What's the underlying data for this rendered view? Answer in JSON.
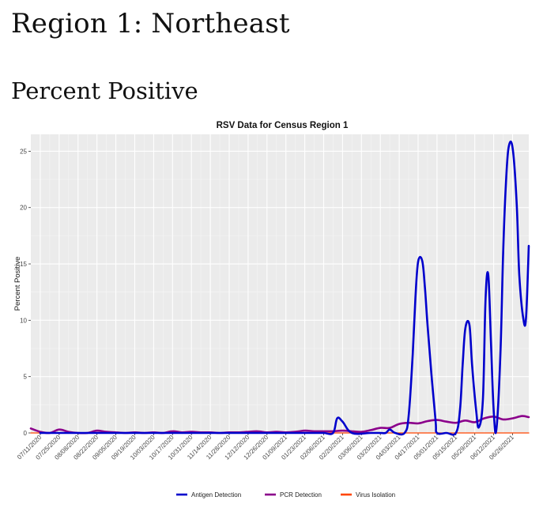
{
  "page": {
    "region_title": "Region 1: Northeast",
    "section_title": "Percent Positive"
  },
  "colors": {
    "panel_bg": "#ebebeb",
    "grid_major": "#ffffff",
    "antigen": "#0000cc",
    "pcr": "#8b008b",
    "virus": "#ff4500"
  },
  "chart_data": {
    "type": "line",
    "title": "RSV Data for Census Region 1",
    "xlabel": "",
    "ylabel": "Percent Positive",
    "ylim": [
      0,
      26.5
    ],
    "yticks": [
      0,
      5,
      10,
      15,
      20,
      25
    ],
    "ytick_labels": [
      "0",
      "5",
      "10",
      "15",
      "20",
      "25"
    ],
    "grid": true,
    "legend_position": "bottom",
    "x": [
      "07/11/2020",
      "07/25/2020",
      "08/08/2020",
      "08/22/2020",
      "09/05/2020",
      "09/19/2020",
      "10/03/2020",
      "10/17/2020",
      "10/31/2020",
      "11/14/2020",
      "11/28/2020",
      "12/12/2020",
      "12/26/2020",
      "01/09/2021",
      "01/23/2021",
      "02/06/2021",
      "02/20/2021",
      "03/06/2021",
      "03/20/2021",
      "04/03/2021",
      "04/17/2021",
      "05/01/2021",
      "05/15/2021",
      "05/29/2021",
      "06/12/2021",
      "06/26/2021"
    ],
    "series": [
      {
        "name": "Antigen Detection",
        "color": "#0000cc",
        "points": [
          [
            "07/11/2020",
            0
          ],
          [
            "07/18/2020",
            0
          ],
          [
            "08/01/2020",
            0
          ],
          [
            "08/15/2020",
            0
          ],
          [
            "08/29/2020",
            0
          ],
          [
            "09/12/2020",
            0
          ],
          [
            "09/26/2020",
            0
          ],
          [
            "10/10/2020",
            0
          ],
          [
            "10/24/2020",
            0
          ],
          [
            "11/07/2020",
            0
          ],
          [
            "11/21/2020",
            0
          ],
          [
            "12/05/2020",
            0
          ],
          [
            "12/19/2020",
            0
          ],
          [
            "01/02/2021",
            0
          ],
          [
            "01/16/2021",
            0
          ],
          [
            "01/30/2021",
            0
          ],
          [
            "02/06/2021",
            0
          ],
          [
            "02/13/2021",
            0
          ],
          [
            "02/16/2021",
            1.3
          ],
          [
            "02/20/2021",
            1.0
          ],
          [
            "02/27/2021",
            0
          ],
          [
            "03/13/2021",
            0
          ],
          [
            "03/20/2021",
            0
          ],
          [
            "03/24/2021",
            0
          ],
          [
            "03/27/2021",
            0.3
          ],
          [
            "03/31/2021",
            0
          ],
          [
            "04/07/2021",
            0
          ],
          [
            "04/10/2021",
            1.5
          ],
          [
            "04/13/2021",
            7.0
          ],
          [
            "04/15/2021",
            12.0
          ],
          [
            "04/17/2021",
            15.2
          ],
          [
            "04/20/2021",
            15.3
          ],
          [
            "04/22/2021",
            13.0
          ],
          [
            "04/24/2021",
            9.5
          ],
          [
            "04/27/2021",
            5.0
          ],
          [
            "04/30/2021",
            1.0
          ],
          [
            "05/01/2021",
            0
          ],
          [
            "05/08/2021",
            0
          ],
          [
            "05/15/2021",
            0
          ],
          [
            "05/18/2021",
            2.0
          ],
          [
            "05/20/2021",
            6.0
          ],
          [
            "05/22/2021",
            9.3
          ],
          [
            "05/25/2021",
            9.6
          ],
          [
            "05/27/2021",
            6.0
          ],
          [
            "05/30/2021",
            2.0
          ],
          [
            "06/01/2021",
            0.5
          ],
          [
            "06/04/2021",
            3.0
          ],
          [
            "06/06/2021",
            12.0
          ],
          [
            "06/08/2021",
            14.0
          ],
          [
            "06/10/2021",
            8.0
          ],
          [
            "06/12/2021",
            2.0
          ],
          [
            "06/14/2021",
            0.3
          ],
          [
            "06/17/2021",
            7.0
          ],
          [
            "06/19/2021",
            16.0
          ],
          [
            "06/21/2021",
            22.0
          ],
          [
            "06/23/2021",
            25.3
          ],
          [
            "06/26/2021",
            25.3
          ],
          [
            "06/29/2021",
            20.5
          ],
          [
            "07/01/2021",
            14.0
          ],
          [
            "07/04/2021",
            10.1
          ],
          [
            "07/06/2021",
            10.3
          ],
          [
            "07/08/2021",
            16.6
          ]
        ]
      },
      {
        "name": "PCR Detection",
        "color": "#8b008b",
        "points": [
          [
            "07/04/2020",
            0.4
          ],
          [
            "07/11/2020",
            0.1
          ],
          [
            "07/18/2020",
            0.0
          ],
          [
            "07/25/2020",
            0.3
          ],
          [
            "08/01/2020",
            0.1
          ],
          [
            "08/08/2020",
            0.0
          ],
          [
            "08/15/2020",
            0.0
          ],
          [
            "08/22/2020",
            0.2
          ],
          [
            "08/29/2020",
            0.1
          ],
          [
            "09/05/2020",
            0.05
          ],
          [
            "09/12/2020",
            0.0
          ],
          [
            "09/19/2020",
            0.05
          ],
          [
            "09/26/2020",
            0.0
          ],
          [
            "10/03/2020",
            0.05
          ],
          [
            "10/10/2020",
            0.0
          ],
          [
            "10/17/2020",
            0.15
          ],
          [
            "10/24/2020",
            0.05
          ],
          [
            "10/31/2020",
            0.1
          ],
          [
            "11/07/2020",
            0.05
          ],
          [
            "11/14/2020",
            0.05
          ],
          [
            "11/21/2020",
            0.0
          ],
          [
            "11/28/2020",
            0.05
          ],
          [
            "12/05/2020",
            0.05
          ],
          [
            "12/12/2020",
            0.1
          ],
          [
            "12/19/2020",
            0.15
          ],
          [
            "12/26/2020",
            0.05
          ],
          [
            "01/02/2021",
            0.1
          ],
          [
            "01/09/2021",
            0.05
          ],
          [
            "01/16/2021",
            0.1
          ],
          [
            "01/23/2021",
            0.2
          ],
          [
            "01/30/2021",
            0.15
          ],
          [
            "02/06/2021",
            0.15
          ],
          [
            "02/13/2021",
            0.15
          ],
          [
            "02/20/2021",
            0.2
          ],
          [
            "02/27/2021",
            0.15
          ],
          [
            "03/06/2021",
            0.1
          ],
          [
            "03/13/2021",
            0.25
          ],
          [
            "03/20/2021",
            0.45
          ],
          [
            "03/27/2021",
            0.45
          ],
          [
            "04/03/2021",
            0.8
          ],
          [
            "04/10/2021",
            0.9
          ],
          [
            "04/17/2021",
            0.85
          ],
          [
            "04/24/2021",
            1.05
          ],
          [
            "05/01/2021",
            1.15
          ],
          [
            "05/08/2021",
            1.0
          ],
          [
            "05/15/2021",
            0.9
          ],
          [
            "05/22/2021",
            1.1
          ],
          [
            "05/29/2021",
            0.95
          ],
          [
            "06/05/2021",
            1.3
          ],
          [
            "06/12/2021",
            1.45
          ],
          [
            "06/19/2021",
            1.2
          ],
          [
            "06/26/2021",
            1.3
          ],
          [
            "07/03/2021",
            1.5
          ],
          [
            "07/08/2021",
            1.4
          ]
        ]
      },
      {
        "name": "Virus Isolation",
        "color": "#ff4500",
        "points": [
          [
            "07/04/2020",
            0
          ],
          [
            "07/08/2021",
            0
          ]
        ]
      }
    ]
  }
}
